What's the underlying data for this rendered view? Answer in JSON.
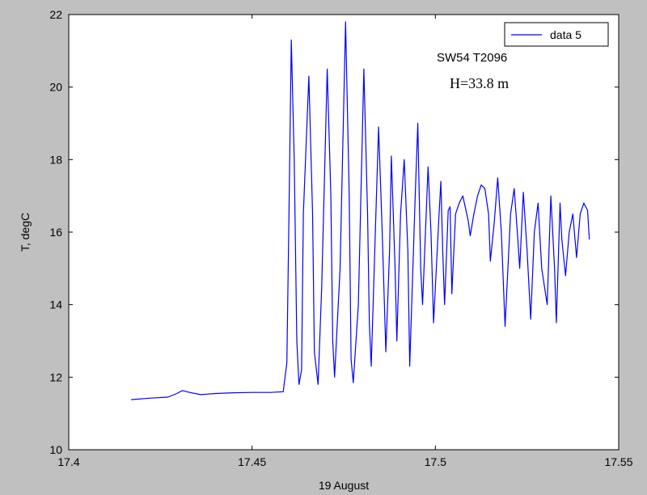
{
  "chart_data": {
    "type": "line",
    "title": "",
    "xlabel": "19 August",
    "ylabel": "T, degC",
    "xlim": [
      17.4,
      17.55
    ],
    "ylim": [
      10,
      22
    ],
    "xticks": [
      17.4,
      17.45,
      17.5,
      17.55
    ],
    "xtick_labels": [
      "17.4",
      "17.45",
      "17.5",
      "17.55"
    ],
    "yticks": [
      10,
      12,
      14,
      16,
      18,
      20,
      22
    ],
    "ytick_labels": [
      "10",
      "12",
      "14",
      "16",
      "18",
      "20",
      "22"
    ],
    "grid": false,
    "legend": {
      "position": "top-right",
      "entries": [
        "data 5"
      ]
    },
    "annotations": [
      "SW54 T2096",
      "H=33.8 m"
    ],
    "series": [
      {
        "name": "data 5",
        "color": "#0000ff",
        "points": [
          [
            17.417,
            11.38
          ],
          [
            17.422,
            11.42
          ],
          [
            17.427,
            11.45
          ],
          [
            17.4295,
            11.55
          ],
          [
            17.431,
            11.63
          ],
          [
            17.433,
            11.58
          ],
          [
            17.436,
            11.52
          ],
          [
            17.44,
            11.55
          ],
          [
            17.445,
            11.57
          ],
          [
            17.45,
            11.58
          ],
          [
            17.455,
            11.58
          ],
          [
            17.4585,
            11.6
          ],
          [
            17.4595,
            12.4
          ],
          [
            17.46,
            16.0
          ],
          [
            17.4607,
            21.3
          ],
          [
            17.4615,
            18.0
          ],
          [
            17.4622,
            13.0
          ],
          [
            17.4628,
            11.8
          ],
          [
            17.4635,
            12.2
          ],
          [
            17.464,
            16.5
          ],
          [
            17.4655,
            20.3
          ],
          [
            17.4665,
            16.5
          ],
          [
            17.467,
            12.7
          ],
          [
            17.468,
            11.8
          ],
          [
            17.469,
            14.5
          ],
          [
            17.4705,
            20.5
          ],
          [
            17.4715,
            17.0
          ],
          [
            17.472,
            13.0
          ],
          [
            17.4725,
            12.0
          ],
          [
            17.474,
            15.0
          ],
          [
            17.4755,
            21.8
          ],
          [
            17.4765,
            17.0
          ],
          [
            17.477,
            12.5
          ],
          [
            17.4776,
            11.85
          ],
          [
            17.479,
            14.0
          ],
          [
            17.4805,
            20.5
          ],
          [
            17.4815,
            16.5
          ],
          [
            17.482,
            13.5
          ],
          [
            17.4825,
            12.3
          ],
          [
            17.4845,
            18.9
          ],
          [
            17.4855,
            16.0
          ],
          [
            17.4865,
            12.7
          ],
          [
            17.4875,
            15.5
          ],
          [
            17.488,
            18.1
          ],
          [
            17.489,
            15.0
          ],
          [
            17.4895,
            13.0
          ],
          [
            17.4905,
            16.5
          ],
          [
            17.4915,
            18.0
          ],
          [
            17.4925,
            15.5
          ],
          [
            17.493,
            12.3
          ],
          [
            17.4945,
            17.0
          ],
          [
            17.4952,
            19.0
          ],
          [
            17.496,
            15.0
          ],
          [
            17.4965,
            14.0
          ],
          [
            17.498,
            17.8
          ],
          [
            17.4988,
            16.0
          ],
          [
            17.4995,
            13.5
          ],
          [
            17.501,
            16.5
          ],
          [
            17.5015,
            17.4
          ],
          [
            17.502,
            15.5
          ],
          [
            17.5025,
            14.0
          ],
          [
            17.5035,
            16.6
          ],
          [
            17.504,
            16.7
          ],
          [
            17.5045,
            14.3
          ],
          [
            17.5055,
            16.5
          ],
          [
            17.5065,
            16.8
          ],
          [
            17.5075,
            17.0
          ],
          [
            17.509,
            16.3
          ],
          [
            17.5095,
            15.9
          ],
          [
            17.5105,
            16.5
          ],
          [
            17.5115,
            17.0
          ],
          [
            17.5125,
            17.3
          ],
          [
            17.5135,
            17.2
          ],
          [
            17.5145,
            16.5
          ],
          [
            17.515,
            15.2
          ],
          [
            17.516,
            16.2
          ],
          [
            17.517,
            17.5
          ],
          [
            17.518,
            16.0
          ],
          [
            17.519,
            13.4
          ],
          [
            17.5205,
            16.5
          ],
          [
            17.5215,
            17.2
          ],
          [
            17.5225,
            15.8
          ],
          [
            17.523,
            15.0
          ],
          [
            17.524,
            17.1
          ],
          [
            17.525,
            15.5
          ],
          [
            17.526,
            13.6
          ],
          [
            17.527,
            16.0
          ],
          [
            17.528,
            16.8
          ],
          [
            17.529,
            15.0
          ],
          [
            17.5305,
            14.0
          ],
          [
            17.5315,
            17.0
          ],
          [
            17.5325,
            15.0
          ],
          [
            17.533,
            13.5
          ],
          [
            17.534,
            16.8
          ],
          [
            17.5345,
            15.8
          ],
          [
            17.5355,
            14.8
          ],
          [
            17.5365,
            16.0
          ],
          [
            17.5375,
            16.5
          ],
          [
            17.5385,
            15.3
          ],
          [
            17.5395,
            16.5
          ],
          [
            17.5405,
            16.8
          ],
          [
            17.5415,
            16.6
          ],
          [
            17.542,
            15.8
          ]
        ]
      }
    ]
  }
}
